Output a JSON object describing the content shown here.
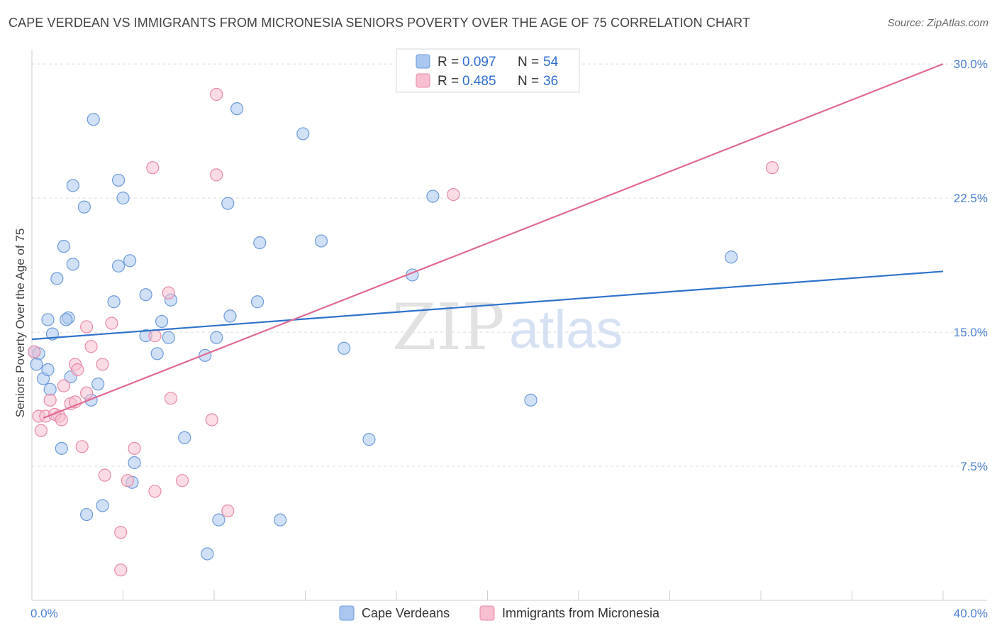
{
  "title": "CAPE VERDEAN VS IMMIGRANTS FROM MICRONESIA SENIORS POVERTY OVER THE AGE OF 75 CORRELATION CHART",
  "source": "Source: ZipAtlas.com",
  "watermark": {
    "zip": "ZIP",
    "atlas": "atlas"
  },
  "colors": {
    "blue_fill": "#a9c7ef",
    "blue_stroke": "#6c9bdb",
    "blue_line": "#2f72cc",
    "pink_fill": "#f7bfd0",
    "pink_stroke": "#e98aa8",
    "pink_line": "#e06a93",
    "grid": "#dcdcdc",
    "tick_label": "#4a7fd1"
  },
  "legend": {
    "rows": [
      {
        "r_label": "R = ",
        "r_value": "0.097",
        "n_label": "N = ",
        "n_value": "54",
        "series": "blue"
      },
      {
        "r_label": "R = ",
        "r_value": "0.485",
        "n_label": "N = ",
        "n_value": "36",
        "series": "pink"
      }
    ]
  },
  "chart_data": {
    "type": "scatter",
    "title": "CAPE VERDEAN VS IMMIGRANTS FROM MICRONESIA SENIORS POVERTY OVER THE AGE OF 75 CORRELATION CHART",
    "xlabel": "",
    "ylabel": "Seniors Poverty Over the Age of 75",
    "xlim": [
      0,
      40
    ],
    "ylim": [
      0,
      30.8
    ],
    "x_tick_labels": [
      "0.0%",
      "40.0%"
    ],
    "y_ticks": [
      7.5,
      15.0,
      22.5,
      30.0
    ],
    "y_tick_labels": [
      "7.5%",
      "15.0%",
      "22.5%",
      "30.0%"
    ],
    "series": [
      {
        "name": "Cape Verdeans",
        "color": "blue",
        "trend": {
          "x": [
            0,
            40
          ],
          "y": [
            14.6,
            18.4
          ]
        },
        "points": [
          [
            0.1,
            13.9
          ],
          [
            0.3,
            13.8
          ],
          [
            0.2,
            13.2
          ],
          [
            0.5,
            12.4
          ],
          [
            0.7,
            12.9
          ],
          [
            0.8,
            11.8
          ],
          [
            0.7,
            15.7
          ],
          [
            1.6,
            15.8
          ],
          [
            1.5,
            15.7
          ],
          [
            1.1,
            18.0
          ],
          [
            1.4,
            19.8
          ],
          [
            1.8,
            18.8
          ],
          [
            1.8,
            23.2
          ],
          [
            2.3,
            22.0
          ],
          [
            2.7,
            26.9
          ],
          [
            3.8,
            23.5
          ],
          [
            4.0,
            22.5
          ],
          [
            3.8,
            18.7
          ],
          [
            4.3,
            19.0
          ],
          [
            3.6,
            16.7
          ],
          [
            5.0,
            17.1
          ],
          [
            5.5,
            13.8
          ],
          [
            5.7,
            15.6
          ],
          [
            6.0,
            14.7
          ],
          [
            6.1,
            16.8
          ],
          [
            0.9,
            14.9
          ],
          [
            1.3,
            8.5
          ],
          [
            1.7,
            12.5
          ],
          [
            2.6,
            11.2
          ],
          [
            2.9,
            12.1
          ],
          [
            2.4,
            4.8
          ],
          [
            3.1,
            5.3
          ],
          [
            4.4,
            6.6
          ],
          [
            4.5,
            7.7
          ],
          [
            6.7,
            9.1
          ],
          [
            7.6,
            13.7
          ],
          [
            8.1,
            14.7
          ],
          [
            8.7,
            15.9
          ],
          [
            7.7,
            2.6
          ],
          [
            8.2,
            4.5
          ],
          [
            9.0,
            27.5
          ],
          [
            8.6,
            22.2
          ],
          [
            9.9,
            16.7
          ],
          [
            10.0,
            20.0
          ],
          [
            10.9,
            4.5
          ],
          [
            11.9,
            26.1
          ],
          [
            12.7,
            20.1
          ],
          [
            13.7,
            14.1
          ],
          [
            14.8,
            9.0
          ],
          [
            16.7,
            18.2
          ],
          [
            17.6,
            22.6
          ],
          [
            21.9,
            11.2
          ],
          [
            30.7,
            19.2
          ],
          [
            5.0,
            14.8
          ]
        ]
      },
      {
        "name": "Immigrants from Micronesia",
        "color": "pink",
        "trend": {
          "x": [
            0.5,
            40
          ],
          "y": [
            10.2,
            30.0
          ]
        },
        "points": [
          [
            0.1,
            13.9
          ],
          [
            0.3,
            10.3
          ],
          [
            0.4,
            9.5
          ],
          [
            0.6,
            10.3
          ],
          [
            0.8,
            11.2
          ],
          [
            1.2,
            10.3
          ],
          [
            1.0,
            10.4
          ],
          [
            1.3,
            10.1
          ],
          [
            1.7,
            11.0
          ],
          [
            1.9,
            11.1
          ],
          [
            1.4,
            12.0
          ],
          [
            1.9,
            13.2
          ],
          [
            2.0,
            12.9
          ],
          [
            2.4,
            15.3
          ],
          [
            2.4,
            11.6
          ],
          [
            2.6,
            14.2
          ],
          [
            3.1,
            13.2
          ],
          [
            3.5,
            15.5
          ],
          [
            2.2,
            8.6
          ],
          [
            3.2,
            7.0
          ],
          [
            3.9,
            3.8
          ],
          [
            3.9,
            1.7
          ],
          [
            4.5,
            8.5
          ],
          [
            4.2,
            6.7
          ],
          [
            5.3,
            24.2
          ],
          [
            5.4,
            14.8
          ],
          [
            5.4,
            6.1
          ],
          [
            6.0,
            17.2
          ],
          [
            6.1,
            11.3
          ],
          [
            6.6,
            6.7
          ],
          [
            7.9,
            10.1
          ],
          [
            8.1,
            23.8
          ],
          [
            8.1,
            28.3
          ],
          [
            8.6,
            5.0
          ],
          [
            18.5,
            22.7
          ],
          [
            32.5,
            24.2
          ]
        ]
      }
    ]
  }
}
